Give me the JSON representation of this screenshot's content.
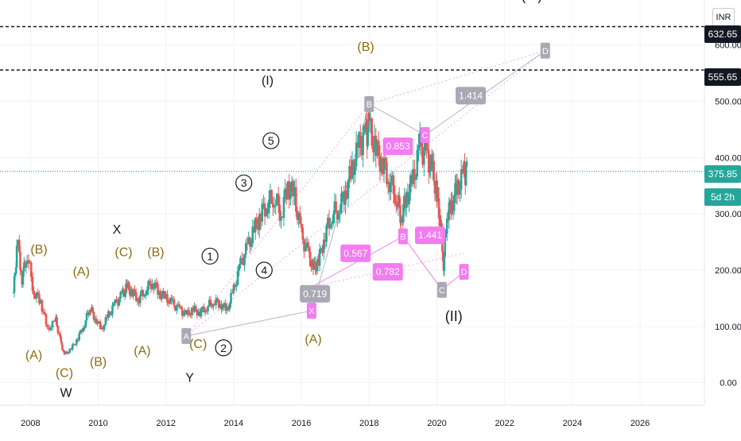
{
  "currency": "INR",
  "colors": {
    "up": "#26a69a",
    "down": "#ef5350",
    "pink": "#f37cf0",
    "gray_badge": "#a9a9b4",
    "wave_brown": "#8a6d12",
    "wave_black": "#131722",
    "current_price": "#26a69a",
    "dotted_pink": "#f5a3ef",
    "axis_text": "#131722",
    "grid": "#f0f3fa"
  },
  "current_price": {
    "value": "375.85",
    "countdown": "5d 2h"
  },
  "levels": [
    {
      "label": "632.65",
      "value": 632.65
    },
    {
      "label": "555.65",
      "value": 555.65
    }
  ],
  "chart_data": {
    "type": "candlestick",
    "x_axis": {
      "ticks": [
        "2008",
        "2010",
        "2012",
        "2014",
        "2016",
        "2018",
        "2020",
        "2022",
        "2024",
        "2026"
      ],
      "range": [
        2007.1,
        2027.9
      ]
    },
    "y_axis": {
      "ticks": [
        "0.00",
        "100.00",
        "200.00",
        "300.00",
        "400.00",
        "500.00",
        "600.00"
      ],
      "range": [
        -40,
        680
      ]
    },
    "price_path": [
      [
        2007.5,
        160
      ],
      [
        2007.62,
        255
      ],
      [
        2007.75,
        185
      ],
      [
        2007.9,
        230
      ],
      [
        2008.1,
        160
      ],
      [
        2008.3,
        145
      ],
      [
        2008.5,
        95
      ],
      [
        2008.75,
        110
      ],
      [
        2008.9,
        70
      ],
      [
        2009.0,
        50
      ],
      [
        2009.2,
        60
      ],
      [
        2009.4,
        80
      ],
      [
        2009.6,
        105
      ],
      [
        2009.75,
        135
      ],
      [
        2009.9,
        115
      ],
      [
        2010.1,
        95
      ],
      [
        2010.3,
        120
      ],
      [
        2010.5,
        140
      ],
      [
        2010.7,
        155
      ],
      [
        2010.85,
        170
      ],
      [
        2011.0,
        160
      ],
      [
        2011.2,
        150
      ],
      [
        2011.4,
        165
      ],
      [
        2011.6,
        180
      ],
      [
        2011.8,
        160
      ],
      [
        2012.0,
        150
      ],
      [
        2012.2,
        140
      ],
      [
        2012.4,
        130
      ],
      [
        2012.6,
        120
      ],
      [
        2012.8,
        130
      ],
      [
        2013.0,
        125
      ],
      [
        2013.2,
        135
      ],
      [
        2013.4,
        145
      ],
      [
        2013.6,
        140
      ],
      [
        2013.8,
        130
      ],
      [
        2014.0,
        165
      ],
      [
        2014.2,
        210
      ],
      [
        2014.4,
        240
      ],
      [
        2014.6,
        270
      ],
      [
        2014.8,
        300
      ],
      [
        2015.0,
        320
      ],
      [
        2015.2,
        330
      ],
      [
        2015.4,
        300
      ],
      [
        2015.6,
        350
      ],
      [
        2015.8,
        330
      ],
      [
        2016.0,
        260
      ],
      [
        2016.2,
        230
      ],
      [
        2016.35,
        200
      ],
      [
        2016.5,
        215
      ],
      [
        2016.7,
        265
      ],
      [
        2016.9,
        300
      ],
      [
        2017.1,
        310
      ],
      [
        2017.3,
        340
      ],
      [
        2017.5,
        380
      ],
      [
        2017.7,
        420
      ],
      [
        2017.9,
        440
      ],
      [
        2018.0,
        455
      ],
      [
        2018.2,
        410
      ],
      [
        2018.4,
        390
      ],
      [
        2018.6,
        360
      ],
      [
        2018.8,
        330
      ],
      [
        2018.95,
        295
      ],
      [
        2019.1,
        330
      ],
      [
        2019.3,
        360
      ],
      [
        2019.5,
        420
      ],
      [
        2019.7,
        400
      ],
      [
        2019.85,
        380
      ],
      [
        2020.0,
        340
      ],
      [
        2020.1,
        290
      ],
      [
        2020.2,
        210
      ],
      [
        2020.3,
        300
      ],
      [
        2020.45,
        320
      ],
      [
        2020.6,
        345
      ],
      [
        2020.8,
        370
      ],
      [
        2020.9,
        376
      ]
    ],
    "wave_labels": [
      {
        "text": "(B)",
        "x": 2008.25,
        "y": 230,
        "color": "brown"
      },
      {
        "text": "(A)",
        "x": 2008.1,
        "y": 42,
        "color": "brown"
      },
      {
        "text": "(C)",
        "x": 2009.0,
        "y": 10,
        "color": "brown"
      },
      {
        "text": "W",
        "x": 2009.05,
        "y": -25,
        "color": "black"
      },
      {
        "text": "(A)",
        "x": 2009.5,
        "y": 190,
        "color": "brown"
      },
      {
        "text": "(B)",
        "x": 2010.0,
        "y": 30,
        "color": "brown"
      },
      {
        "text": "X",
        "x": 2010.55,
        "y": 265,
        "color": "black"
      },
      {
        "text": "(C)",
        "x": 2010.75,
        "y": 225,
        "color": "brown"
      },
      {
        "text": "(A)",
        "x": 2011.3,
        "y": 50,
        "color": "brown"
      },
      {
        "text": "(B)",
        "x": 2011.7,
        "y": 225,
        "color": "brown"
      },
      {
        "text": "(C)",
        "x": 2012.95,
        "y": 62,
        "color": "brown"
      },
      {
        "text": "Y",
        "x": 2012.7,
        "y": 2,
        "color": "black"
      },
      {
        "text": "(A)",
        "x": 2016.35,
        "y": 70,
        "color": "brown"
      },
      {
        "text": "(B)",
        "x": 2017.9,
        "y": 590,
        "color": "brown"
      },
      {
        "text": "(I)",
        "x": 2015.0,
        "y": 530,
        "color": "black"
      },
      {
        "text": "(II)",
        "x": 2020.5,
        "y": 110,
        "color": "black"
      },
      {
        "text": "(III)",
        "x": 2022.8,
        "y": 680,
        "color": "black"
      }
    ],
    "circled_labels": [
      {
        "text": "1",
        "x": 2013.3,
        "y": 225
      },
      {
        "text": "2",
        "x": 2013.7,
        "y": 62
      },
      {
        "text": "3",
        "x": 2014.3,
        "y": 355
      },
      {
        "text": "4",
        "x": 2014.9,
        "y": 200
      },
      {
        "text": "5",
        "x": 2015.1,
        "y": 430
      }
    ],
    "harmonic_points": [
      {
        "label": "A",
        "x": 2012.6,
        "y": 83,
        "style": "gray"
      },
      {
        "label": "X",
        "x": 2016.3,
        "y": 128,
        "style": "pink"
      },
      {
        "label": "B",
        "x": 2018.0,
        "y": 495,
        "style": "gray"
      },
      {
        "label": "C",
        "x": 2019.65,
        "y": 440,
        "style": "pink"
      },
      {
        "label": "D",
        "x": 2023.2,
        "y": 590,
        "style": "gray"
      },
      {
        "label": "B",
        "x": 2019.0,
        "y": 260,
        "style": "pink"
      },
      {
        "label": "C",
        "x": 2020.15,
        "y": 165,
        "style": "gray"
      },
      {
        "label": "D",
        "x": 2020.8,
        "y": 197,
        "style": "pink"
      }
    ],
    "ratio_labels": [
      {
        "text": "0.719",
        "x": 2016.4,
        "y": 158,
        "style": "gray"
      },
      {
        "text": "0.853",
        "x": 2018.85,
        "y": 420,
        "style": "pink"
      },
      {
        "text": "1.414",
        "x": 2021.0,
        "y": 510,
        "style": "gray"
      },
      {
        "text": "0.567",
        "x": 2017.6,
        "y": 230,
        "style": "pink"
      },
      {
        "text": "0.782",
        "x": 2018.55,
        "y": 197,
        "style": "pink"
      },
      {
        "text": "1.441",
        "x": 2019.8,
        "y": 262,
        "style": "pink"
      }
    ]
  }
}
